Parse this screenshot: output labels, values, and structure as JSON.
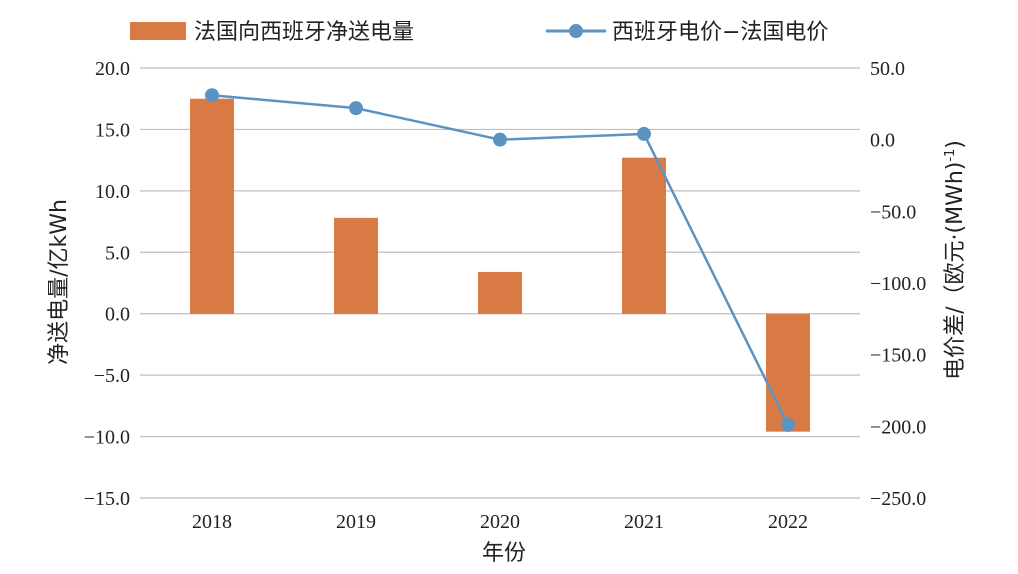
{
  "chart_data": {
    "type": "bar+line",
    "categories": [
      "2018",
      "2019",
      "2020",
      "2021",
      "2022"
    ],
    "xlabel": "年份",
    "ylabel_left": "净送电量/亿kWh",
    "ylabel_right_main": "电价差/（欧元·(MWh)",
    "ylabel_right_sup": "-1",
    "ylabel_right_tail": ")",
    "y_left": {
      "min": -15,
      "max": 20,
      "step": 5,
      "tick_labels": [
        "−15.0",
        "−10.0",
        "−5.0",
        "0.0",
        "5.0",
        "10.0",
        "15.0",
        "20.0"
      ]
    },
    "y_right": {
      "min": -250,
      "max": 50,
      "step": 50,
      "tick_labels": [
        "−250.0",
        "−200.0",
        "−150.0",
        "−100.0",
        "−50.0",
        "0.0",
        "50.0"
      ]
    },
    "grid": true,
    "legend_position": "top",
    "series": [
      {
        "name": "法国向西班牙净送电量",
        "type": "bar",
        "axis": "left",
        "color": "#D97A45",
        "values": [
          17.5,
          7.8,
          3.4,
          12.7,
          -9.6
        ]
      },
      {
        "name": "西班牙电价−法国电价",
        "type": "line",
        "axis": "right",
        "color": "#5B93C3",
        "values": [
          31,
          22,
          0,
          4,
          -199
        ]
      }
    ]
  }
}
